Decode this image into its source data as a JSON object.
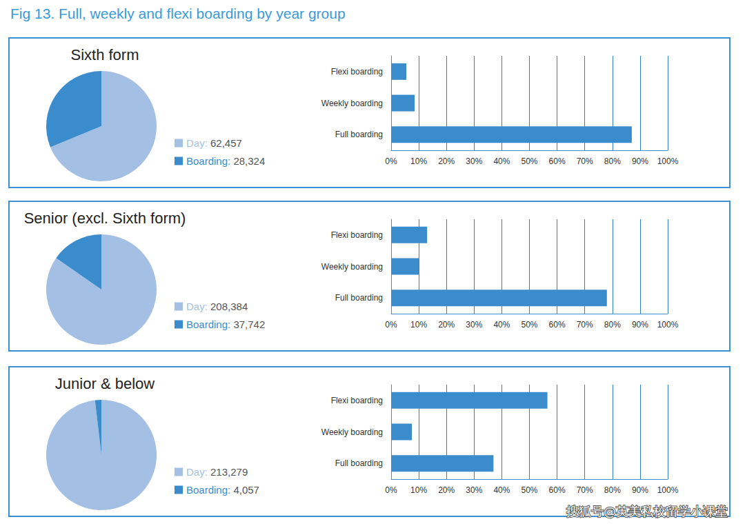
{
  "title": "Fig 13. Full, weekly and flexi boarding by year group",
  "watermark": "搜狐号@英美私校留学小课堂",
  "chart_data": [
    {
      "type": "pie",
      "title": "Sixth form",
      "categories": [
        "Day:",
        "Boarding:"
      ],
      "values": [
        62457,
        28324
      ],
      "value_labels": [
        "62,457",
        "28,324"
      ],
      "colors": [
        "#a3bfe3",
        "#3b8ccd"
      ],
      "legend": "right"
    },
    {
      "type": "bar",
      "orientation": "horizontal",
      "categories": [
        "Flexi boarding",
        "Weekly boarding",
        "Full boarding"
      ],
      "values": [
        5.5,
        8.5,
        87
      ],
      "color": "#3b8ccd",
      "xlim": [
        0,
        100
      ],
      "xticks": [
        {
          "value": 0,
          "label": "0%"
        },
        {
          "value": 10,
          "label": "10%"
        },
        {
          "value": 20,
          "label": "20%"
        },
        {
          "value": 30,
          "label": "30%"
        },
        {
          "value": 40,
          "label": "40%"
        },
        {
          "value": 50,
          "label": "50%"
        },
        {
          "value": 60,
          "label": "60%"
        },
        {
          "value": 70,
          "label": "70%"
        },
        {
          "value": 80,
          "label": "80%"
        },
        {
          "value": 90,
          "label": "90%"
        },
        {
          "value": 100,
          "label": "100%"
        }
      ],
      "grid": true
    },
    {
      "type": "pie",
      "title": "Senior (excl. Sixth form)",
      "categories": [
        "Day:",
        "Boarding:"
      ],
      "values": [
        208384,
        37742
      ],
      "value_labels": [
        "208,384",
        "37,742"
      ],
      "colors": [
        "#a3bfe3",
        "#3b8ccd"
      ],
      "legend": "right"
    },
    {
      "type": "bar",
      "orientation": "horizontal",
      "categories": [
        "Flexi boarding",
        "Weekly boarding",
        "Full boarding"
      ],
      "values": [
        13,
        10,
        78
      ],
      "color": "#3b8ccd",
      "xlim": [
        0,
        100
      ],
      "xticks": [
        {
          "value": 0,
          "label": "0%"
        },
        {
          "value": 10,
          "label": "10%"
        },
        {
          "value": 20,
          "label": "20%"
        },
        {
          "value": 30,
          "label": "30%"
        },
        {
          "value": 40,
          "label": "40%"
        },
        {
          "value": 50,
          "label": "50%"
        },
        {
          "value": 60,
          "label": "60%"
        },
        {
          "value": 70,
          "label": "70%"
        },
        {
          "value": 80,
          "label": "80%"
        },
        {
          "value": 90,
          "label": "90%"
        },
        {
          "value": 100,
          "label": "100%"
        }
      ],
      "grid": true
    },
    {
      "type": "pie",
      "title": "Junior & below",
      "categories": [
        "Day:",
        "Boarding:"
      ],
      "values": [
        213279,
        4057
      ],
      "value_labels": [
        "213,279",
        "4,057"
      ],
      "colors": [
        "#a3bfe3",
        "#3b8ccd"
      ],
      "legend": "right"
    },
    {
      "type": "bar",
      "orientation": "horizontal",
      "categories": [
        "Flexi boarding",
        "Weekly boarding",
        "Full boarding"
      ],
      "values": [
        56.5,
        7.5,
        37
      ],
      "color": "#3b8ccd",
      "xlim": [
        0,
        100
      ],
      "xticks": [
        {
          "value": 0,
          "label": "0%"
        },
        {
          "value": 10,
          "label": "10%"
        },
        {
          "value": 20,
          "label": "20%"
        },
        {
          "value": 30,
          "label": "30%"
        },
        {
          "value": 40,
          "label": "40%"
        },
        {
          "value": 50,
          "label": "50%"
        },
        {
          "value": 60,
          "label": "60%"
        },
        {
          "value": 70,
          "label": "70%"
        },
        {
          "value": 80,
          "label": "80%"
        },
        {
          "value": 90,
          "label": "90%"
        },
        {
          "value": 100,
          "label": "100%"
        }
      ],
      "grid": true
    }
  ]
}
